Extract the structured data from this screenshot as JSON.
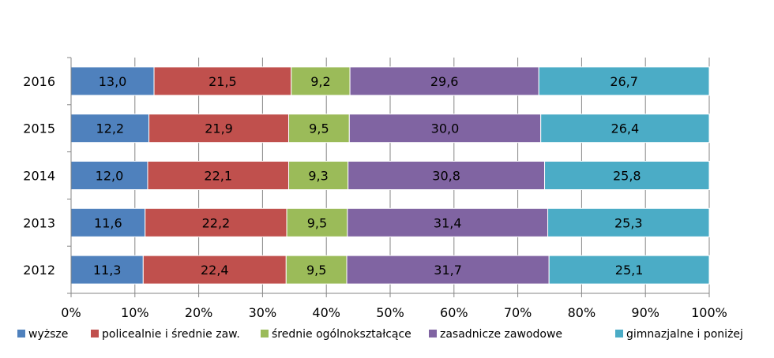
{
  "chart_data": {
    "type": "bar",
    "orientation": "horizontal",
    "stacked": "percent",
    "categories": [
      "2016",
      "2015",
      "2014",
      "2013",
      "2012"
    ],
    "series": [
      {
        "name": "wyższe",
        "color": "#4F81BD",
        "values": [
          13.0,
          12.2,
          12.0,
          11.6,
          11.3
        ],
        "labels": [
          "13,0",
          "12,2",
          "12,0",
          "11,6",
          "11,3"
        ]
      },
      {
        "name": "policealnie i średnie zaw.",
        "color": "#C0504D",
        "values": [
          21.5,
          21.9,
          22.1,
          22.2,
          22.4
        ],
        "labels": [
          "21,5",
          "21,9",
          "22,1",
          "22,2",
          "22,4"
        ]
      },
      {
        "name": "średnie ogólnokształcące",
        "color": "#9BBB59",
        "values": [
          9.2,
          9.5,
          9.3,
          9.5,
          9.5
        ],
        "labels": [
          "9,2",
          "9,5",
          "9,3",
          "9,5",
          "9,5"
        ]
      },
      {
        "name": "zasadnicze zawodowe",
        "color": "#8064A2",
        "values": [
          29.6,
          30.0,
          30.8,
          31.4,
          31.7
        ],
        "labels": [
          "29,6",
          "30,0",
          "30,8",
          "31,4",
          "31,7"
        ]
      },
      {
        "name": "gimnazjalne i poniżej",
        "color": "#4BACC6",
        "values": [
          26.7,
          26.4,
          25.8,
          25.3,
          25.1
        ],
        "labels": [
          "26,7",
          "26,4",
          "25,8",
          "25,3",
          "25,1"
        ]
      }
    ],
    "x_ticks": [
      "0%",
      "10%",
      "20%",
      "30%",
      "40%",
      "50%",
      "60%",
      "70%",
      "80%",
      "90%",
      "100%"
    ],
    "xlim": [
      0,
      100
    ],
    "grid": true,
    "legend_position": "bottom"
  }
}
